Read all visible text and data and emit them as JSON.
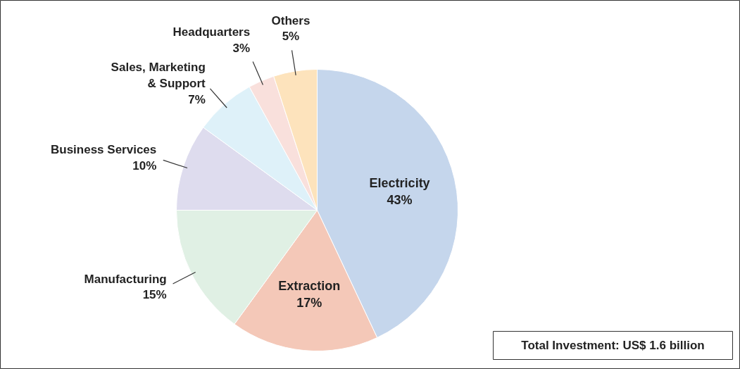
{
  "chart_data": {
    "type": "pie",
    "categories": [
      "Electricity",
      "Extraction",
      "Manufacturing",
      "Business Services",
      "Sales, Marketing & Support",
      "Headquarters",
      "Others"
    ],
    "values": [
      43,
      17,
      15,
      10,
      7,
      3,
      5
    ],
    "value_labels": [
      "43%",
      "17%",
      "15%",
      "10%",
      "7%",
      "3%",
      "5%"
    ],
    "colors": [
      "#c5d6ec",
      "#f4c8b8",
      "#e0f0e4",
      "#dedcee",
      "#def1f9",
      "#f9e0dc",
      "#fde3bc"
    ],
    "annotations": [
      "Total Investment: US$ 1.6 billion"
    ]
  }
}
